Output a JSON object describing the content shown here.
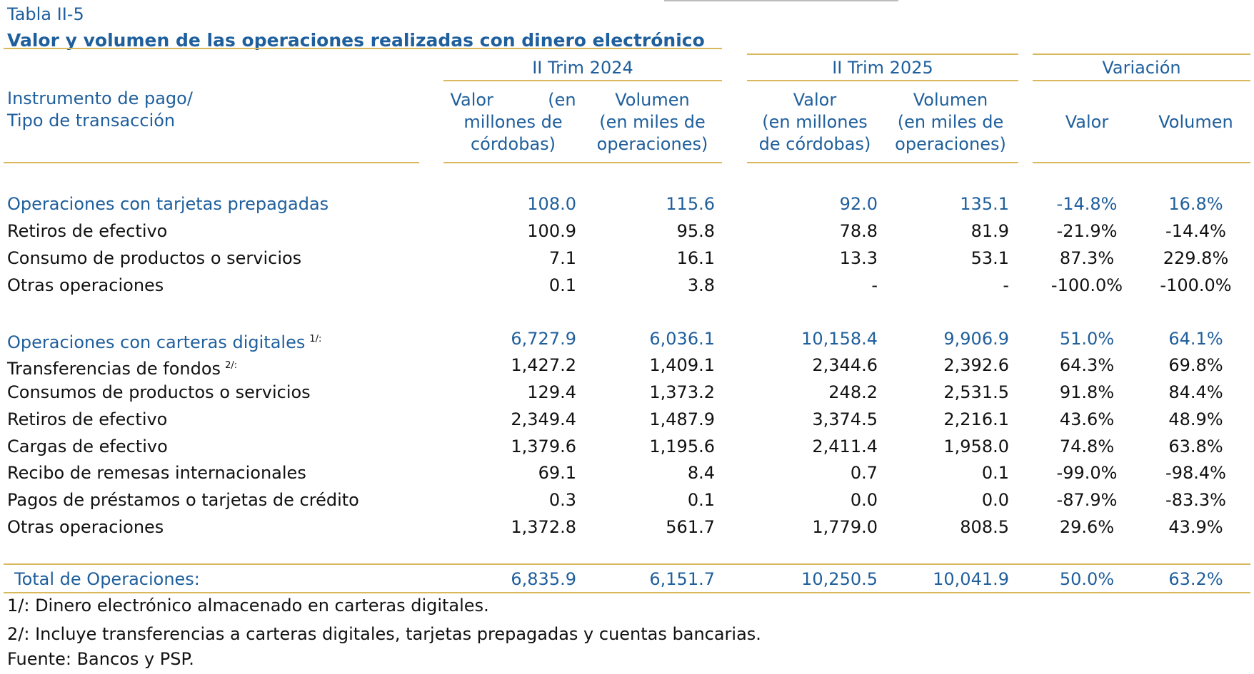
{
  "header": {
    "table_number": "Tabla II-5",
    "title": "Valor y volumen de las operaciones realizadas con dinero electrónico"
  },
  "columns": {
    "row_header_line1": "Instrumento de pago/",
    "row_header_line2": "Tipo de transacción",
    "groups": [
      "II Trim 2024",
      "II Trim 2025",
      "Variación"
    ],
    "sub_2024": [
      {
        "l1": "Valor          (en",
        "l2": "millones de",
        "l3": "córdobas)"
      },
      {
        "l1": "Volumen",
        "l2": "(en miles de",
        "l3": "operaciones)"
      }
    ],
    "sub_2025": [
      {
        "l1": "Valor",
        "l2": "(en millones",
        "l3": "de córdobas)"
      },
      {
        "l1": "Volumen",
        "l2": "(en miles de",
        "l3": "operaciones)"
      }
    ],
    "sub_var": [
      "Valor",
      "Volumen"
    ]
  },
  "rows": [
    {
      "label": "Operaciones con tarjetas prepagadas",
      "note": "",
      "values": [
        "108.0",
        "115.6",
        "92.0",
        "135.1",
        "-14.8%",
        "16.8%"
      ]
    },
    {
      "label": "Retiros de efectivo",
      "note": "",
      "values": [
        "100.9",
        "95.8",
        "78.8",
        "81.9",
        "-21.9%",
        "-14.4%"
      ]
    },
    {
      "label": "Consumo de productos o servicios",
      "note": "",
      "values": [
        "7.1",
        "16.1",
        "13.3",
        "53.1",
        "87.3%",
        "229.8%"
      ]
    },
    {
      "label": "Otras operaciones",
      "note": "",
      "values": [
        "0.1",
        "3.8",
        "-",
        "-",
        "-100.0%",
        "-100.0%"
      ]
    },
    {
      "label": "Operaciones con carteras digitales",
      "note": "1/:",
      "values": [
        "6,727.9",
        "6,036.1",
        "10,158.4",
        "9,906.9",
        "51.0%",
        "64.1%"
      ]
    },
    {
      "label": "Transferencias de fondos",
      "note": "2/:",
      "values": [
        "1,427.2",
        "1,409.1",
        "2,344.6",
        "2,392.6",
        "64.3%",
        "69.8%"
      ]
    },
    {
      "label": "Consumos de productos o servicios",
      "note": "",
      "values": [
        "129.4",
        "1,373.2",
        "248.2",
        "2,531.5",
        "91.8%",
        "84.4%"
      ]
    },
    {
      "label": "Retiros de efectivo",
      "note": "",
      "values": [
        "2,349.4",
        "1,487.9",
        "3,374.5",
        "2,216.1",
        "43.6%",
        "48.9%"
      ]
    },
    {
      "label": "Cargas de efectivo",
      "note": "",
      "values": [
        "1,379.6",
        "1,195.6",
        "2,411.4",
        "1,958.0",
        "74.8%",
        "63.8%"
      ]
    },
    {
      "label": "Recibo de remesas internacionales",
      "note": "",
      "values": [
        "69.1",
        "8.4",
        "0.7",
        "0.1",
        "-99.0%",
        "-98.4%"
      ]
    },
    {
      "label": "Pagos de préstamos o tarjetas de crédito",
      "note": "",
      "values": [
        "0.3",
        "0.1",
        "0.0",
        "0.0",
        "-87.9%",
        "-83.3%"
      ]
    },
    {
      "label": "Otras operaciones",
      "note": "",
      "values": [
        "1,372.8",
        "561.7",
        "1,779.0",
        "808.5",
        "29.6%",
        "43.9%"
      ]
    }
  ],
  "total": {
    "label": "Total de Operaciones:",
    "values": [
      "6,835.9",
      "6,151.7",
      "10,250.5",
      "10,041.9",
      "50.0%",
      "63.2%"
    ]
  },
  "footnotes": [
    "1/: Dinero electrónico almacenado en carteras digitales.",
    "2/: Incluye transferencias a carteras digitales, tarjetas prepagadas y cuentas bancarias.",
    "Fuente: Bancos y PSP."
  ],
  "colors": {
    "accent_blue": "#1f5f9c",
    "rule_gold": "#d8b85a",
    "text": "#111111"
  }
}
